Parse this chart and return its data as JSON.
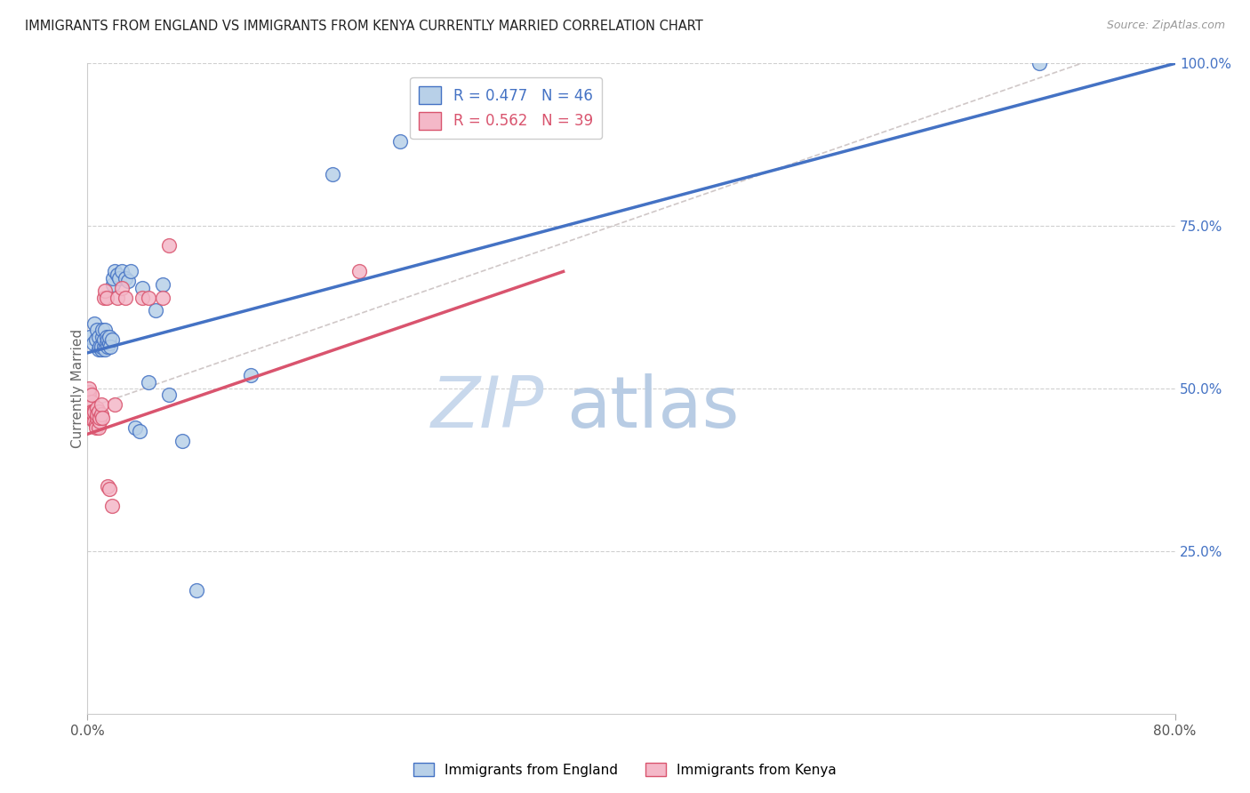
{
  "title": "IMMIGRANTS FROM ENGLAND VS IMMIGRANTS FROM KENYA CURRENTLY MARRIED CORRELATION CHART",
  "source": "Source: ZipAtlas.com",
  "ylabel": "Currently Married",
  "xlim": [
    0.0,
    0.8
  ],
  "ylim": [
    0.0,
    1.0
  ],
  "ytick_labels_right": [
    "25.0%",
    "50.0%",
    "75.0%",
    "100.0%"
  ],
  "yticks_right": [
    0.25,
    0.5,
    0.75,
    1.0
  ],
  "legend_R1": "R = 0.477",
  "legend_N1": "N = 46",
  "legend_R2": "R = 0.562",
  "legend_N2": "N = 39",
  "legend_label1": "Immigrants from England",
  "legend_label2": "Immigrants from Kenya",
  "color_england": "#b8d0e8",
  "color_england_line": "#4472c4",
  "color_kenya": "#f4b8c8",
  "color_kenya_line": "#d9546e",
  "color_diagonal": "#d0c8c8",
  "watermark_zip": "ZIP",
  "watermark_atlas": "atlas",
  "watermark_color_zip": "#c8d8ec",
  "watermark_color_atlas": "#b8cce4",
  "england_x": [
    0.002,
    0.004,
    0.005,
    0.006,
    0.007,
    0.008,
    0.008,
    0.009,
    0.01,
    0.01,
    0.011,
    0.011,
    0.012,
    0.012,
    0.013,
    0.013,
    0.014,
    0.014,
    0.015,
    0.015,
    0.016,
    0.016,
    0.017,
    0.018,
    0.019,
    0.019,
    0.02,
    0.022,
    0.023,
    0.025,
    0.028,
    0.03,
    0.032,
    0.035,
    0.038,
    0.04,
    0.045,
    0.05,
    0.055,
    0.06,
    0.07,
    0.08,
    0.12,
    0.18,
    0.23,
    0.7
  ],
  "england_y": [
    0.58,
    0.57,
    0.6,
    0.575,
    0.59,
    0.56,
    0.58,
    0.565,
    0.56,
    0.565,
    0.58,
    0.59,
    0.565,
    0.575,
    0.59,
    0.56,
    0.57,
    0.58,
    0.565,
    0.575,
    0.57,
    0.58,
    0.565,
    0.575,
    0.66,
    0.67,
    0.68,
    0.675,
    0.67,
    0.68,
    0.67,
    0.665,
    0.68,
    0.44,
    0.435,
    0.655,
    0.51,
    0.62,
    0.66,
    0.49,
    0.42,
    0.19,
    0.52,
    0.83,
    0.88,
    1.0
  ],
  "kenya_x": [
    0.001,
    0.001,
    0.001,
    0.002,
    0.002,
    0.003,
    0.003,
    0.003,
    0.004,
    0.004,
    0.005,
    0.005,
    0.006,
    0.006,
    0.007,
    0.007,
    0.007,
    0.008,
    0.008,
    0.009,
    0.009,
    0.01,
    0.01,
    0.011,
    0.012,
    0.013,
    0.014,
    0.015,
    0.016,
    0.018,
    0.02,
    0.022,
    0.025,
    0.028,
    0.04,
    0.045,
    0.055,
    0.06,
    0.2
  ],
  "kenya_y": [
    0.49,
    0.495,
    0.5,
    0.455,
    0.465,
    0.48,
    0.465,
    0.49,
    0.465,
    0.46,
    0.45,
    0.465,
    0.445,
    0.44,
    0.47,
    0.455,
    0.46,
    0.44,
    0.465,
    0.45,
    0.455,
    0.46,
    0.475,
    0.455,
    0.64,
    0.65,
    0.64,
    0.35,
    0.345,
    0.32,
    0.475,
    0.64,
    0.655,
    0.64,
    0.64,
    0.64,
    0.64,
    0.72,
    0.68
  ],
  "eng_line_x0": 0.0,
  "eng_line_y0": 0.555,
  "eng_line_x1": 0.8,
  "eng_line_y1": 1.0,
  "ken_line_x0": 0.0,
  "ken_line_y0": 0.43,
  "ken_line_x1": 0.35,
  "ken_line_y1": 0.68
}
